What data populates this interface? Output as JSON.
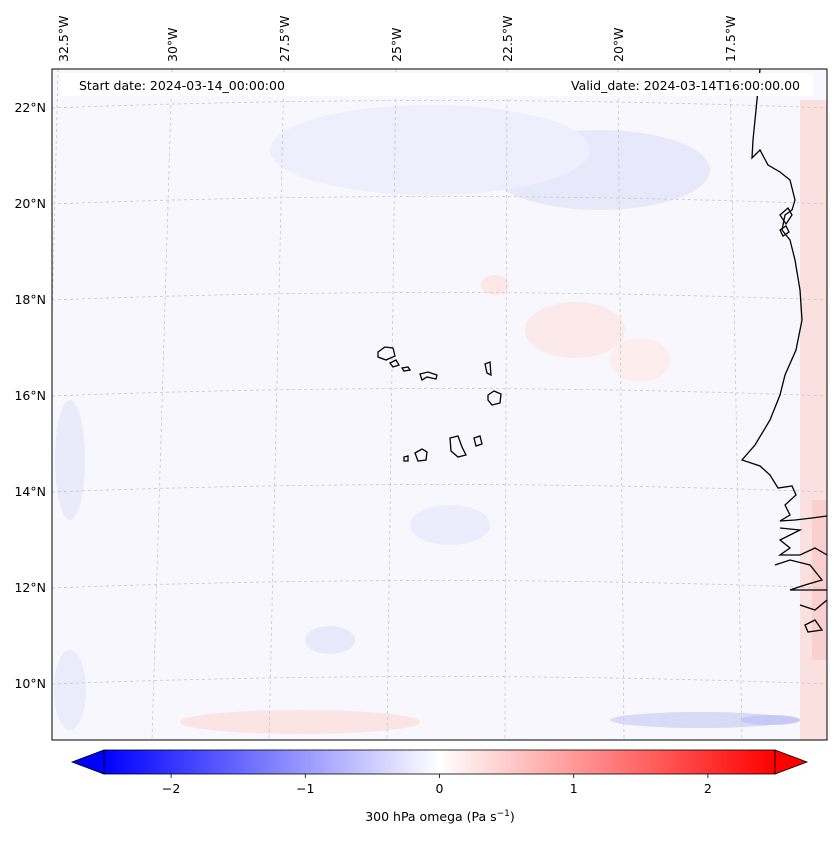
{
  "map": {
    "start_label": "Start date: 2024-03-14_00:00:00",
    "valid_label": "Valid_date: 2024-03-14T16:00:00.00",
    "lon_labels": [
      "32.5°W",
      "30°W",
      "27.5°W",
      "25°W",
      "22.5°W",
      "20°W",
      "17.5°W"
    ],
    "lat_labels": [
      "22°N",
      "20°N",
      "18°N",
      "16°N",
      "14°N",
      "12°N",
      "10°N"
    ]
  },
  "colorbar": {
    "label_prefix": "300 hPa omega (Pa s",
    "label_exponent": "−1",
    "label_suffix": ")",
    "ticks": [
      "−2",
      "−1",
      "0",
      "1",
      "2"
    ],
    "tick_values": [
      -2,
      -1,
      0,
      1,
      2
    ],
    "range": [
      -2.5,
      2.5
    ],
    "colormap": "bwr",
    "extend": "both"
  },
  "colors": {
    "ocean_background": "#f7f7fd",
    "coastline": "#000000",
    "gridline": "#c8c8c8",
    "negative_extreme": "#0000ff",
    "positive_extreme": "#ff0000",
    "neutral": "#ffffff"
  }
}
